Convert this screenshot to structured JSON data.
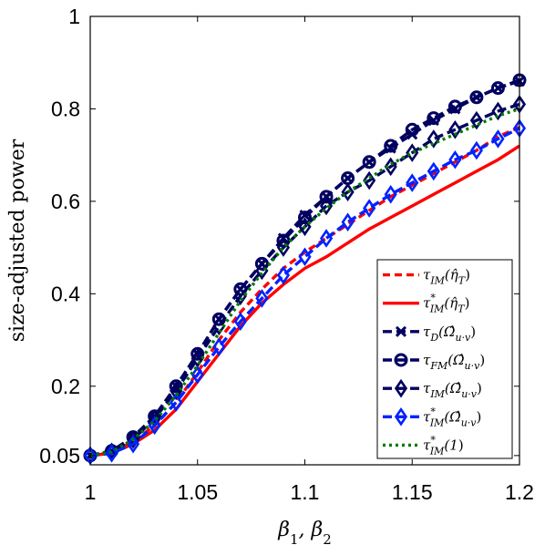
{
  "chart_data": {
    "type": "line",
    "xlabel": "β₁, β₂",
    "ylabel": "size-adjusted power",
    "xlim": [
      1,
      1.2
    ],
    "ylim": [
      0.03,
      1
    ],
    "xticks": [
      1,
      1.05,
      1.1,
      1.15,
      1.2
    ],
    "xtick_labels": [
      "1",
      "1.05",
      "1.1",
      "1.15",
      "1.2"
    ],
    "yticks": [
      0.05,
      0.2,
      0.4,
      0.6,
      0.8,
      1
    ],
    "ytick_labels": [
      "0.05",
      "0.2",
      "0.4",
      "0.6",
      "0.8",
      "1"
    ],
    "grid": false,
    "legend_position": "lower-right",
    "x": [
      1.0,
      1.01,
      1.02,
      1.03,
      1.04,
      1.05,
      1.06,
      1.07,
      1.08,
      1.09,
      1.1,
      1.11,
      1.12,
      1.13,
      1.14,
      1.15,
      1.16,
      1.17,
      1.18,
      1.19,
      1.2
    ],
    "series": [
      {
        "name": "τ_IM(η̂_T)",
        "color": "#ff0000",
        "dash": "8,5",
        "marker": "none",
        "values": [
          0.05,
          0.058,
          0.08,
          0.115,
          0.165,
          0.23,
          0.3,
          0.36,
          0.41,
          0.455,
          0.49,
          0.52,
          0.55,
          0.58,
          0.61,
          0.635,
          0.66,
          0.685,
          0.71,
          0.74,
          0.76
        ]
      },
      {
        "name": "τ*_IM(η̂_T)",
        "color": "#ff0000",
        "dash": "",
        "marker": "none",
        "values": [
          0.05,
          0.055,
          0.075,
          0.105,
          0.15,
          0.21,
          0.27,
          0.33,
          0.38,
          0.42,
          0.455,
          0.48,
          0.51,
          0.54,
          0.565,
          0.59,
          0.615,
          0.64,
          0.665,
          0.69,
          0.72
        ]
      },
      {
        "name": "τ_D(Ω̂_u·v)",
        "color": "#000060",
        "dash": "10,5",
        "marker": "x",
        "values": [
          0.05,
          0.06,
          0.09,
          0.135,
          0.2,
          0.27,
          0.345,
          0.41,
          0.465,
          0.52,
          0.57,
          0.61,
          0.65,
          0.685,
          0.715,
          0.745,
          0.775,
          0.8,
          0.825,
          0.845,
          0.86
        ]
      },
      {
        "name": "τ_FM(Ω̂_u·v)",
        "color": "#000060",
        "dash": "10,5",
        "marker": "o",
        "values": [
          0.05,
          0.06,
          0.09,
          0.135,
          0.2,
          0.27,
          0.345,
          0.41,
          0.465,
          0.515,
          0.565,
          0.61,
          0.65,
          0.685,
          0.72,
          0.755,
          0.78,
          0.805,
          0.825,
          0.845,
          0.862
        ]
      },
      {
        "name": "τ_IM(Ω̂_u·v)",
        "color": "#000060",
        "dash": "10,5",
        "marker": "d",
        "values": [
          0.05,
          0.058,
          0.085,
          0.13,
          0.19,
          0.26,
          0.33,
          0.395,
          0.45,
          0.5,
          0.545,
          0.59,
          0.62,
          0.645,
          0.675,
          0.705,
          0.735,
          0.755,
          0.775,
          0.795,
          0.81
        ]
      },
      {
        "name": "τ*_IM(Ω̂_u·v)",
        "color": "#0022ff",
        "dash": "10,5",
        "marker": "d",
        "values": [
          0.05,
          0.055,
          0.075,
          0.115,
          0.165,
          0.225,
          0.285,
          0.34,
          0.39,
          0.44,
          0.48,
          0.52,
          0.555,
          0.585,
          0.615,
          0.64,
          0.665,
          0.69,
          0.71,
          0.735,
          0.758
        ]
      },
      {
        "name": "τ*_IM(1)",
        "color": "#007a00",
        "dash": "3,4",
        "marker": "none",
        "values": [
          0.05,
          0.058,
          0.085,
          0.125,
          0.18,
          0.245,
          0.315,
          0.385,
          0.445,
          0.5,
          0.545,
          0.585,
          0.62,
          0.65,
          0.68,
          0.705,
          0.725,
          0.745,
          0.765,
          0.785,
          0.8
        ]
      }
    ],
    "legend_entries": [
      {
        "base": "τ",
        "sup": "",
        "sub": "IM",
        "arg": "(η̂",
        "argsub": "T",
        "close": ")"
      },
      {
        "base": "τ",
        "sup": "*",
        "sub": "IM",
        "arg": "(η̂",
        "argsub": "T",
        "close": ")"
      },
      {
        "base": "τ",
        "sup": "",
        "sub": "D",
        "arg": "(Ω̂",
        "argsub": "u·v",
        "close": ")"
      },
      {
        "base": "τ",
        "sup": "",
        "sub": "FM",
        "arg": "(Ω̂",
        "argsub": "u·v",
        "close": ")"
      },
      {
        "base": "τ",
        "sup": "",
        "sub": "IM",
        "arg": "(Ω̂",
        "argsub": "u·v",
        "close": ")"
      },
      {
        "base": "τ",
        "sup": "*",
        "sub": "IM",
        "arg": "(Ω̂",
        "argsub": "u·v",
        "close": ")"
      },
      {
        "base": "τ",
        "sup": "*",
        "sub": "IM",
        "arg": "(1",
        "argsub": "",
        "close": ")"
      }
    ]
  }
}
